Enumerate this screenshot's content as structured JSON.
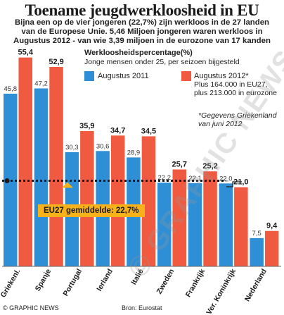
{
  "header": {
    "title": "Toename jeugdwerkloosheid in EU",
    "subtitle_lines": [
      "Bijna een op de vier jongeren (22,7%) zijn werkloos in de 27 landen",
      "van de Europese Unie. 5,46 Miljoen jongeren waren werkloos in",
      "Augustus 2012 - van wie 3,39 miljoen in de eurozone van 17 kanden"
    ]
  },
  "chart_data": {
    "type": "bar",
    "title": "Werkloosheidspercentage(%)",
    "subtitle": "Jonge mensen onder 25, per seizoen bijgesteld",
    "categories": [
      "Griekenl.",
      "Spanje",
      "Portugal",
      "Ierland",
      "Italië",
      "Zweden",
      "Frankrijk",
      "Ver. Koninkrijk",
      "Nederland"
    ],
    "series": [
      {
        "name": "Augustus 2011",
        "color": "#2e8fd6",
        "values": [
          45.8,
          47.2,
          30.3,
          30.6,
          28.9,
          22.2,
          22.1,
          22.0,
          7.5
        ]
      },
      {
        "name": "Augustus 2012*",
        "color": "#f05a40",
        "values": [
          55.4,
          52.9,
          35.9,
          34.7,
          34.5,
          25.7,
          25.2,
          21.0,
          9.4
        ]
      }
    ],
    "value_labels_2011": [
      "45,8",
      "47,2",
      "30,3",
      "30,6",
      "28,9",
      "22,2",
      "22,1",
      "22,0",
      "7,5"
    ],
    "value_labels_2012": [
      "55,4",
      "52,9",
      "35,9",
      "34,7",
      "34,5",
      "25,7",
      "25,2",
      "21,0",
      "9,4"
    ],
    "reference_line": {
      "value": 22.7,
      "label": "EU27 gemiddelde: 22,7%"
    },
    "ylim": [
      0,
      60
    ]
  },
  "notes": {
    "legend_note": [
      "Plus 164.000 in EU27,",
      "plus 213.000 in eurozone"
    ],
    "footnote": [
      "*Gegevens Griekenland",
      "van juni 2012"
    ]
  },
  "footer": {
    "source_left": "© GRAPHIC NEWS",
    "source_right": "Bron: Eurostat"
  },
  "watermark": "© GRAPHIC NEWS",
  "colors": {
    "blue": "#2e8fd6",
    "red": "#f05a40",
    "avg": "#f7b21a"
  }
}
